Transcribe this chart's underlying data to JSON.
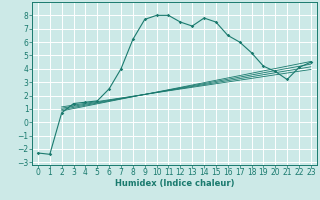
{
  "xlabel": "Humidex (Indice chaleur)",
  "ylabel": "",
  "bg_color": "#cce9e7",
  "grid_color": "#ffffff",
  "line_color": "#1a7a6e",
  "xlim": [
    -0.5,
    23.5
  ],
  "ylim": [
    -3.2,
    9.0
  ],
  "xticks": [
    0,
    1,
    2,
    3,
    4,
    5,
    6,
    7,
    8,
    9,
    10,
    11,
    12,
    13,
    14,
    15,
    16,
    17,
    18,
    19,
    20,
    21,
    22,
    23
  ],
  "yticks": [
    -3,
    -2,
    -1,
    0,
    1,
    2,
    3,
    4,
    5,
    6,
    7,
    8
  ],
  "series": [
    [
      0,
      -2.3
    ],
    [
      1,
      -2.4
    ],
    [
      2,
      0.7
    ],
    [
      3,
      1.4
    ],
    [
      4,
      1.5
    ],
    [
      5,
      1.6
    ],
    [
      6,
      2.5
    ],
    [
      7,
      4.0
    ],
    [
      8,
      6.2
    ],
    [
      9,
      7.7
    ],
    [
      10,
      8.0
    ],
    [
      11,
      8.0
    ],
    [
      12,
      7.5
    ],
    [
      13,
      7.2
    ],
    [
      14,
      7.8
    ],
    [
      15,
      7.5
    ],
    [
      16,
      6.5
    ],
    [
      17,
      6.0
    ],
    [
      18,
      5.2
    ],
    [
      19,
      4.2
    ],
    [
      20,
      3.8
    ],
    [
      21,
      3.2
    ],
    [
      22,
      4.1
    ],
    [
      23,
      4.5
    ]
  ],
  "linear_lines": [
    {
      "x_start": 2,
      "y_start": 0.85,
      "x_end": 23,
      "y_end": 4.55
    },
    {
      "x_start": 2,
      "y_start": 0.95,
      "x_end": 23,
      "y_end": 4.35
    },
    {
      "x_start": 2,
      "y_start": 1.05,
      "x_end": 23,
      "y_end": 4.15
    },
    {
      "x_start": 2,
      "y_start": 1.15,
      "x_end": 23,
      "y_end": 3.95
    }
  ],
  "tick_fontsize": 5.5,
  "xlabel_fontsize": 6.0
}
